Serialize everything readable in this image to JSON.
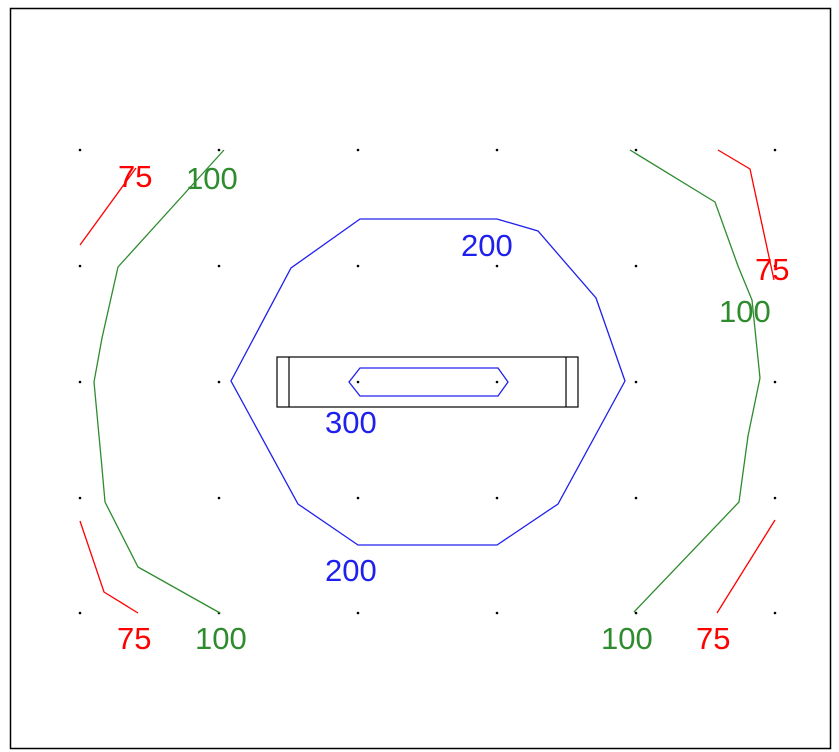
{
  "colors": {
    "frame": "#000000",
    "background": "#ffffff",
    "grid_points": "#000000",
    "luminaire": "#000000"
  },
  "contours": [
    {
      "id": "red-left-top",
      "level": 75,
      "color": "#ff0000",
      "label": "75"
    },
    {
      "id": "green-left",
      "level": 100,
      "color": "#2e8b2e",
      "label": "100"
    },
    {
      "id": "red-right-top",
      "level": 75,
      "color": "#ff0000",
      "label": "75"
    },
    {
      "id": "green-right",
      "level": 100,
      "color": "#2e8b2e",
      "label": "100"
    },
    {
      "id": "blue-outer",
      "level": 200,
      "color": "#2020ee",
      "label": "200"
    },
    {
      "id": "blue-inner",
      "level": 300,
      "color": "#2020ee",
      "label": "300"
    },
    {
      "id": "red-left-bottom",
      "level": 75,
      "color": "#ff0000",
      "label": "75"
    },
    {
      "id": "red-right-bottom",
      "level": 75,
      "color": "#ff0000",
      "label": "75"
    }
  ],
  "labels": [
    {
      "text": "75",
      "color": "#ff0000"
    },
    {
      "text": "100",
      "color": "#2e8b2e"
    },
    {
      "text": "200",
      "color": "#2020ee"
    },
    {
      "text": "75",
      "color": "#ff0000"
    },
    {
      "text": "100",
      "color": "#2e8b2e"
    },
    {
      "text": "300",
      "color": "#2020ee"
    },
    {
      "text": "200",
      "color": "#2020ee"
    },
    {
      "text": "75",
      "color": "#ff0000"
    },
    {
      "text": "100",
      "color": "#2e8b2e"
    },
    {
      "text": "100",
      "color": "#2e8b2e"
    },
    {
      "text": "75",
      "color": "#ff0000"
    }
  ]
}
